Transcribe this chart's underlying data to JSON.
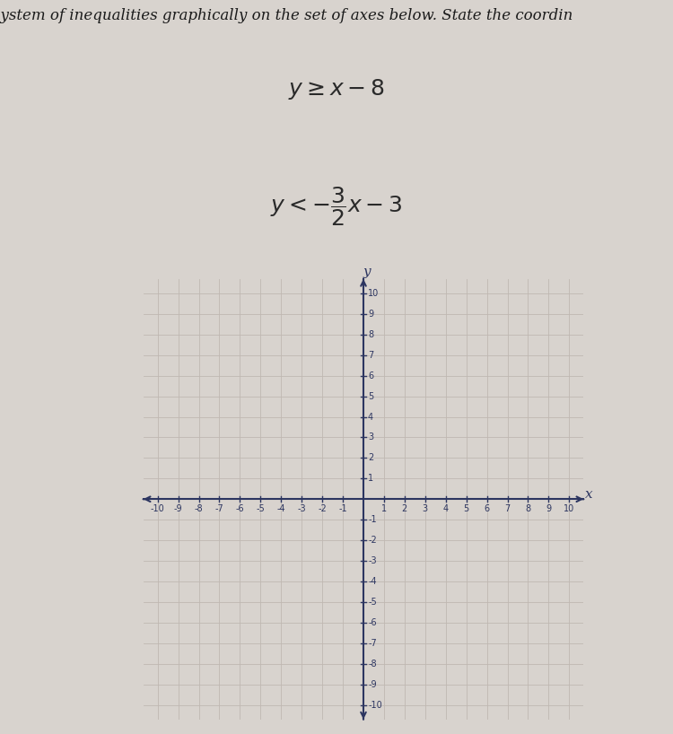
{
  "title_line": "system of inequalities graphically on the set of axes below. State the coordin",
  "ineq1_display": "$y \\geq x - 8$",
  "ineq2_display": "$y < -\\dfrac{3}{2}x - 3$",
  "xmin": -10,
  "xmax": 10,
  "ymin": -10,
  "ymax": 10,
  "background_color": "#d8d3ce",
  "graph_bg_color": "#ddd8d3",
  "grid_color": "#c0b8b2",
  "axis_color": "#2c3560",
  "tick_label_color": "#2c3560",
  "title_color": "#1a1a1a",
  "text_color": "#2a2a2a",
  "fig_width": 7.5,
  "fig_height": 8.18,
  "title_fontsize": 12,
  "ineq_fontsize": 18,
  "tick_fontsize": 7
}
